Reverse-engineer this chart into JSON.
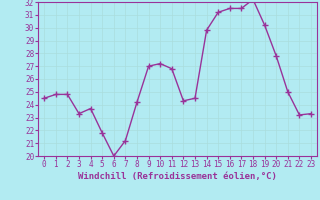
{
  "hours": [
    0,
    1,
    2,
    3,
    4,
    5,
    6,
    7,
    8,
    9,
    10,
    11,
    12,
    13,
    14,
    15,
    16,
    17,
    18,
    19,
    20,
    21,
    22,
    23
  ],
  "values": [
    24.5,
    24.8,
    24.8,
    23.3,
    23.7,
    21.8,
    20.0,
    21.2,
    24.2,
    27.0,
    27.2,
    26.8,
    24.3,
    24.5,
    29.8,
    31.2,
    31.5,
    31.5,
    32.2,
    30.2,
    27.8,
    25.0,
    23.2,
    23.3
  ],
  "line_color": "#993399",
  "marker": "+",
  "marker_size": 4,
  "bg_color": "#b2ebf2",
  "grid_color": "#aadddd",
  "xlabel": "Windchill (Refroidissement éolien,°C)",
  "xlabel_color": "#993399",
  "tick_color": "#993399",
  "ylim": [
    20,
    32
  ],
  "xlim": [
    -0.5,
    23.5
  ],
  "yticks": [
    20,
    21,
    22,
    23,
    24,
    25,
    26,
    27,
    28,
    29,
    30,
    31,
    32
  ],
  "xticks": [
    0,
    1,
    2,
    3,
    4,
    5,
    6,
    7,
    8,
    9,
    10,
    11,
    12,
    13,
    14,
    15,
    16,
    17,
    18,
    19,
    20,
    21,
    22,
    23
  ],
  "line_width": 1.0,
  "tick_fontsize": 5.5,
  "xlabel_fontsize": 6.5
}
